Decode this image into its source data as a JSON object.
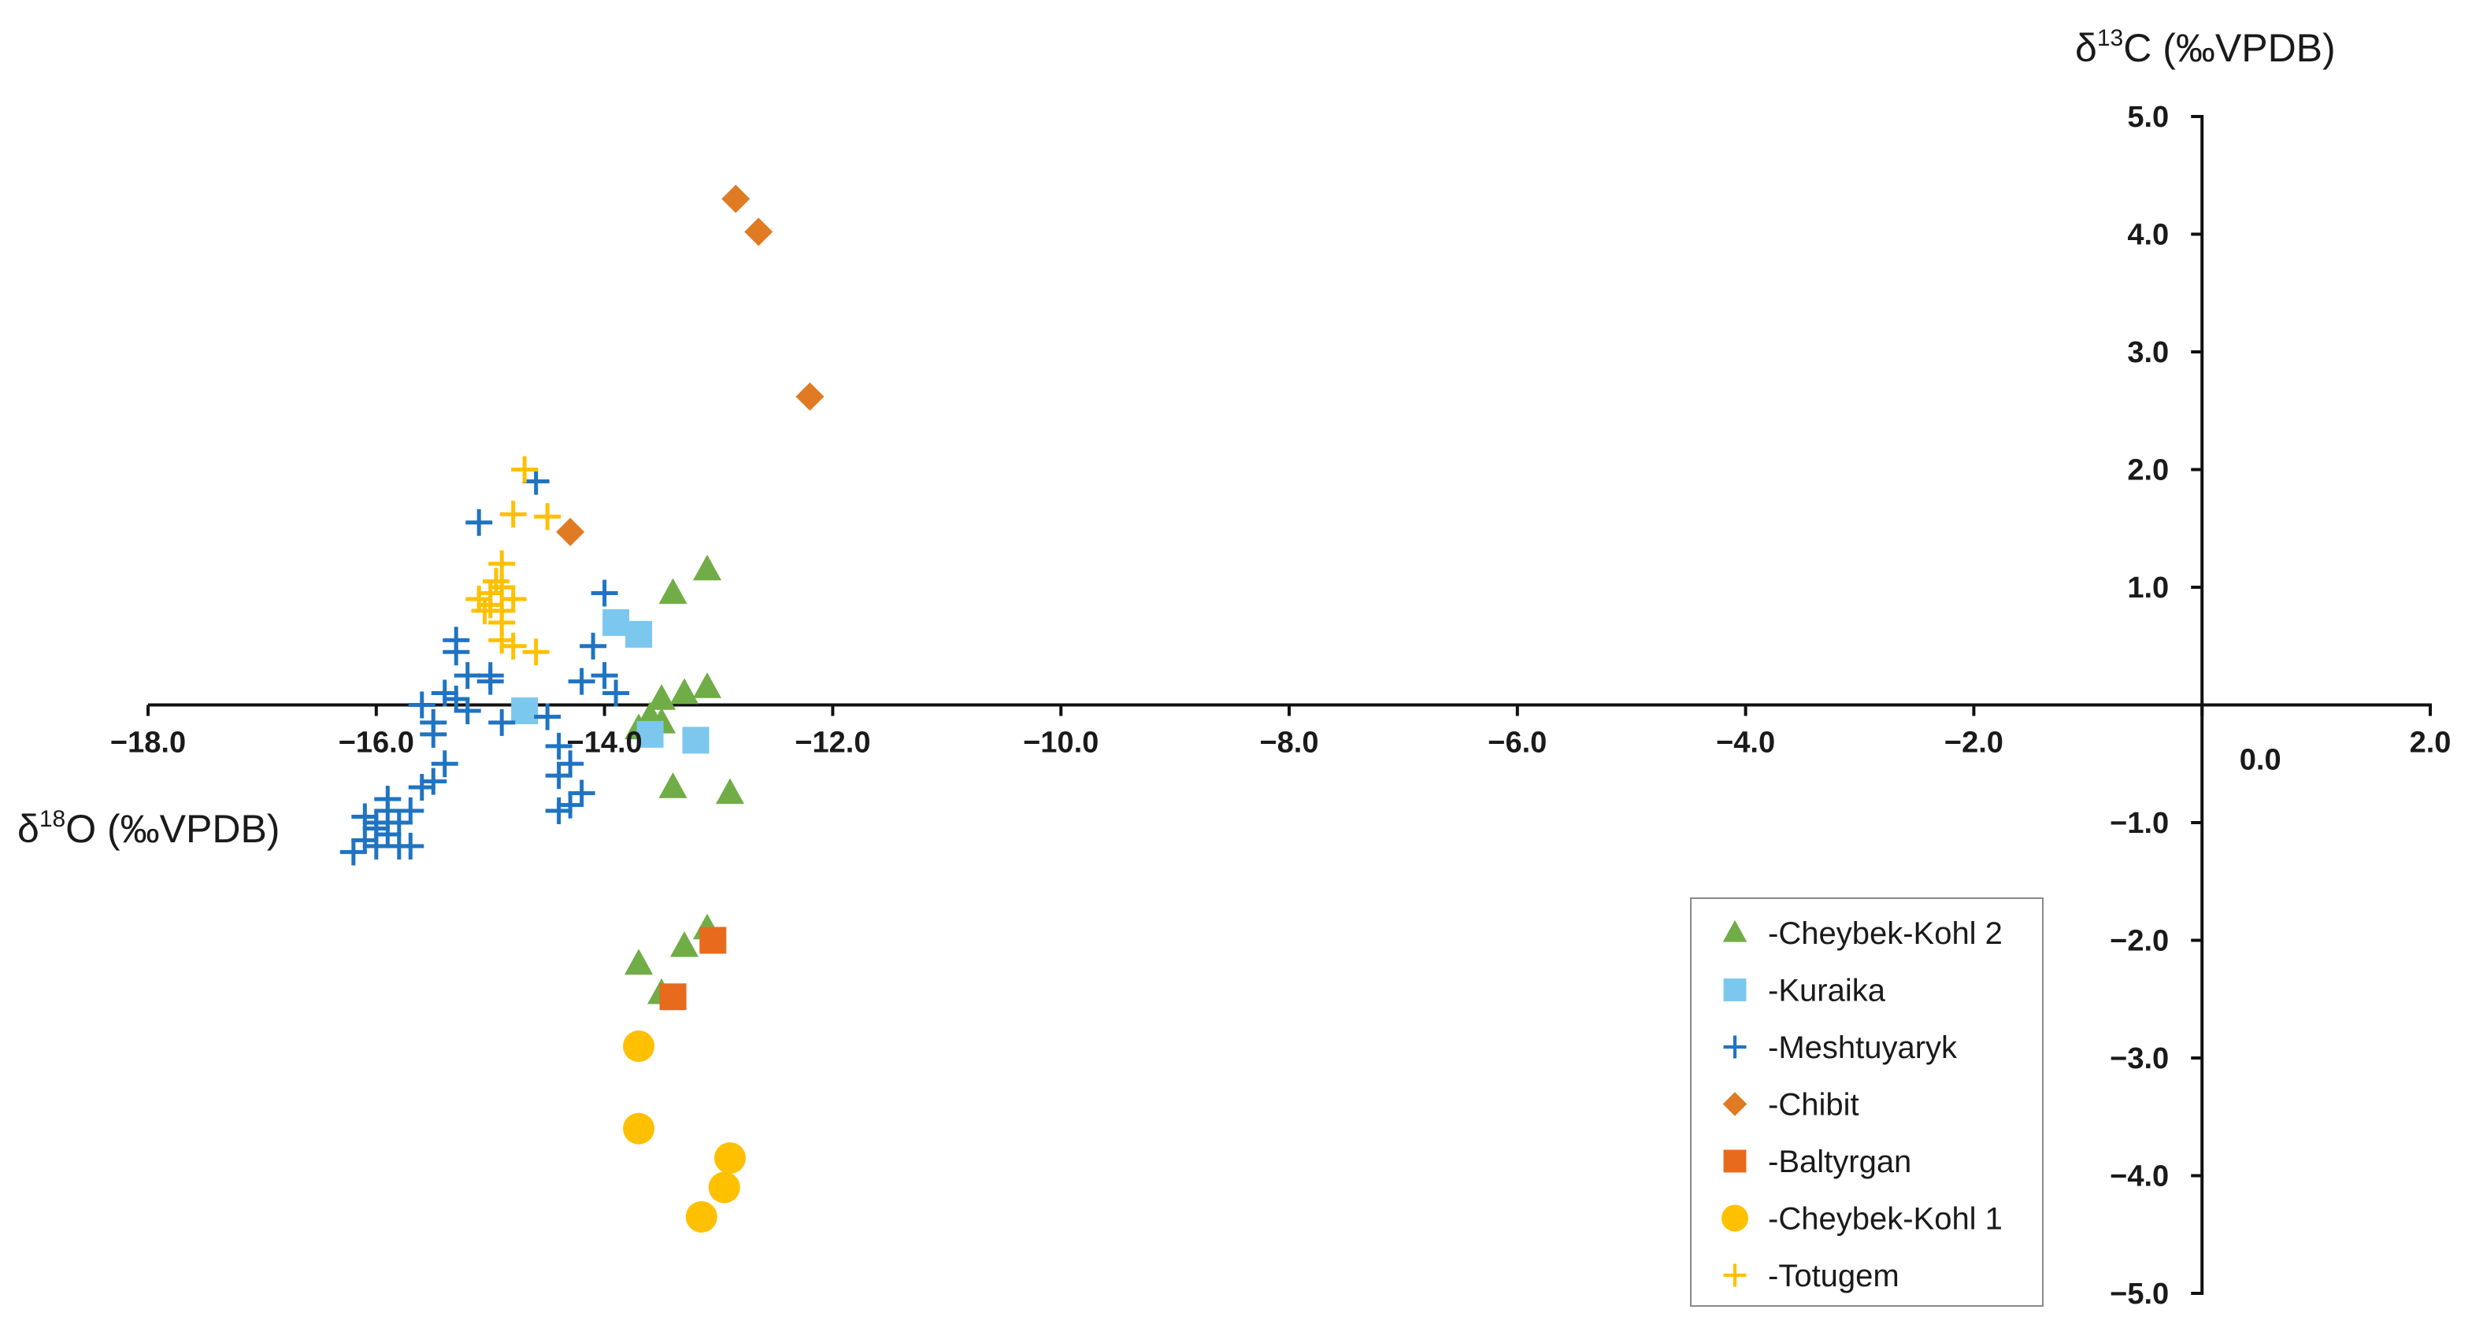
{
  "chart_data": {
    "type": "scatter",
    "title": "",
    "xlabel": {
      "prefix": "δ",
      "sup": "18",
      "rest": "O (‰VPDB)"
    },
    "ylabel": {
      "prefix": "δ",
      "sup": "13",
      "rest": "C (‰VPDB)"
    },
    "xlim": [
      -18,
      2
    ],
    "ylim": [
      -5,
      5
    ],
    "x_ticks": [
      {
        "value": -18,
        "label": "−18.0"
      },
      {
        "value": -16,
        "label": "−16.0"
      },
      {
        "value": -14,
        "label": "−14.0"
      },
      {
        "value": -12,
        "label": "−12.0"
      },
      {
        "value": -10,
        "label": "−10.0"
      },
      {
        "value": -8,
        "label": "−8.0"
      },
      {
        "value": -6,
        "label": "−6.0"
      },
      {
        "value": -4,
        "label": "−4.0"
      },
      {
        "value": -2,
        "label": "−2.0"
      },
      {
        "value": 0,
        "label": "0.0"
      },
      {
        "value": 2,
        "label": "2.0"
      }
    ],
    "y_ticks": [
      {
        "value": 5,
        "label": "5.0"
      },
      {
        "value": 4,
        "label": "4.0"
      },
      {
        "value": 3,
        "label": "3.0"
      },
      {
        "value": 2,
        "label": "2.0"
      },
      {
        "value": 1,
        "label": "1.0"
      },
      {
        "value": -1,
        "label": "−1.0"
      },
      {
        "value": -2,
        "label": "−2.0"
      },
      {
        "value": -3,
        "label": "−3.0"
      },
      {
        "value": -4,
        "label": "−4.0"
      },
      {
        "value": -5,
        "label": "−5.0"
      }
    ],
    "grid": false,
    "legend_position": "bottom-right",
    "series": [
      {
        "name": "-Cheybek-Kohl 2",
        "marker": "triangle",
        "color": "#70AD47",
        "points": [
          [
            -13.4,
            0.95
          ],
          [
            -13.1,
            1.15
          ],
          [
            -13.7,
            -0.2
          ],
          [
            -13.5,
            0.05
          ],
          [
            -13.3,
            0.1
          ],
          [
            -13.1,
            0.15
          ],
          [
            -13.5,
            -0.15
          ],
          [
            -13.4,
            -0.7
          ],
          [
            -12.9,
            -0.75
          ],
          [
            -13.7,
            -2.2
          ],
          [
            -13.3,
            -2.05
          ],
          [
            -13.1,
            -1.9
          ],
          [
            -13.5,
            -2.45
          ],
          [
            -13.6,
            -0.1
          ]
        ]
      },
      {
        "name": "-Kuraika",
        "marker": "square",
        "color": "#7CC7EE",
        "points": [
          [
            -13.9,
            0.7
          ],
          [
            -13.7,
            0.6
          ],
          [
            -14.7,
            -0.05
          ],
          [
            -13.6,
            -0.25
          ],
          [
            -13.2,
            -0.3
          ]
        ]
      },
      {
        "name": "-Meshtuyaryk",
        "marker": "plus",
        "color": "#1F74C2",
        "points": [
          [
            -16.2,
            -1.25
          ],
          [
            -16.1,
            -1.15
          ],
          [
            -16.0,
            -1.2
          ],
          [
            -15.9,
            -1.1
          ],
          [
            -15.8,
            -1.0
          ],
          [
            -16.0,
            -1.0
          ],
          [
            -15.9,
            -0.9
          ],
          [
            -15.7,
            -0.9
          ],
          [
            -16.1,
            -0.95
          ],
          [
            -15.8,
            -1.2
          ],
          [
            -15.7,
            -1.2
          ],
          [
            -16.0,
            -1.05
          ],
          [
            -15.9,
            -0.8
          ],
          [
            -15.6,
            -0.7
          ],
          [
            -15.5,
            -0.65
          ],
          [
            -15.4,
            -0.5
          ],
          [
            -15.5,
            -0.15
          ],
          [
            -15.5,
            -0.25
          ],
          [
            -15.6,
            0.0
          ],
          [
            -15.3,
            0.05
          ],
          [
            -15.2,
            0.25
          ],
          [
            -15.3,
            0.45
          ],
          [
            -15.3,
            0.55
          ],
          [
            -15.0,
            0.25
          ],
          [
            -15.0,
            0.2
          ],
          [
            -15.2,
            -0.05
          ],
          [
            -14.9,
            -0.15
          ],
          [
            -15.4,
            0.1
          ],
          [
            -15.1,
            1.55
          ],
          [
            -14.6,
            1.9
          ],
          [
            -14.4,
            -0.35
          ],
          [
            -14.3,
            -0.5
          ],
          [
            -14.4,
            -0.6
          ],
          [
            -14.2,
            -0.75
          ],
          [
            -14.3,
            -0.85
          ],
          [
            -14.4,
            -0.9
          ],
          [
            -14.2,
            0.2
          ],
          [
            -14.0,
            0.25
          ],
          [
            -14.1,
            0.5
          ],
          [
            -14.0,
            0.95
          ],
          [
            -13.9,
            0.1
          ],
          [
            -14.5,
            -0.1
          ]
        ]
      },
      {
        "name": "-Chibit",
        "marker": "diamond",
        "color": "#E07B24",
        "points": [
          [
            -12.85,
            4.3
          ],
          [
            -12.65,
            4.02
          ],
          [
            -12.2,
            2.62
          ],
          [
            -14.3,
            1.47
          ]
        ]
      },
      {
        "name": "-Baltyrgan",
        "marker": "square",
        "color": "#E86A1C",
        "points": [
          [
            -13.05,
            -2.0
          ],
          [
            -13.4,
            -2.48
          ]
        ]
      },
      {
        "name": "-Cheybek-Kohl 1",
        "marker": "circle",
        "color": "#FFC000",
        "points": [
          [
            -13.7,
            -2.9
          ],
          [
            -13.7,
            -3.6
          ],
          [
            -12.9,
            -3.85
          ],
          [
            -12.95,
            -4.1
          ],
          [
            -13.15,
            -4.35
          ]
        ]
      },
      {
        "name": "-Totugem",
        "marker": "plus",
        "color": "#FFC000",
        "points": [
          [
            -14.7,
            2.0
          ],
          [
            -14.5,
            1.6
          ],
          [
            -14.8,
            1.62
          ],
          [
            -14.9,
            1.2
          ],
          [
            -14.9,
            1.0
          ],
          [
            -15.1,
            0.9
          ],
          [
            -15.0,
            0.95
          ],
          [
            -15.0,
            0.85
          ],
          [
            -14.9,
            0.8
          ],
          [
            -14.8,
            0.9
          ],
          [
            -14.9,
            0.7
          ],
          [
            -14.9,
            0.55
          ],
          [
            -14.8,
            0.5
          ],
          [
            -14.6,
            0.45
          ],
          [
            -14.95,
            1.05
          ],
          [
            -15.05,
            0.8
          ]
        ]
      }
    ]
  }
}
